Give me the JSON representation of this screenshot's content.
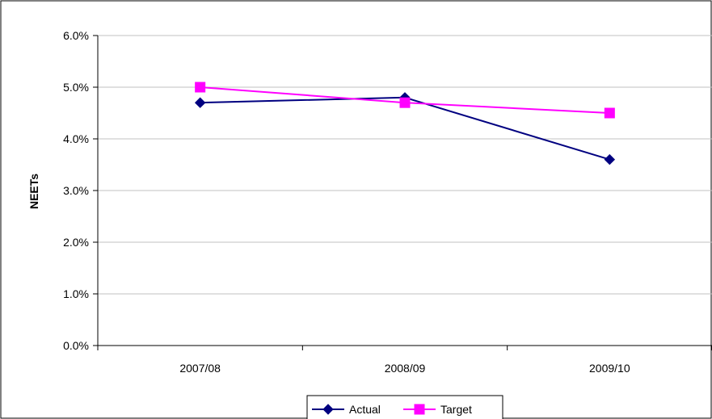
{
  "chart_data": {
    "type": "line",
    "title": "",
    "xlabel": "",
    "ylabel": "NEETs",
    "categories": [
      "2007/08",
      "2008/09",
      "2009/10"
    ],
    "series": [
      {
        "name": "Actual",
        "values": [
          4.7,
          4.8,
          3.6
        ],
        "color": "#000080",
        "marker": "diamond"
      },
      {
        "name": "Target",
        "values": [
          5.0,
          4.7,
          4.5
        ],
        "color": "#FF00FF",
        "marker": "square"
      }
    ],
    "ylim": [
      0,
      6
    ],
    "yticks": [
      "0.0%",
      "1.0%",
      "2.0%",
      "3.0%",
      "4.0%",
      "5.0%",
      "6.0%"
    ],
    "grid": true,
    "legend": "bottom"
  }
}
